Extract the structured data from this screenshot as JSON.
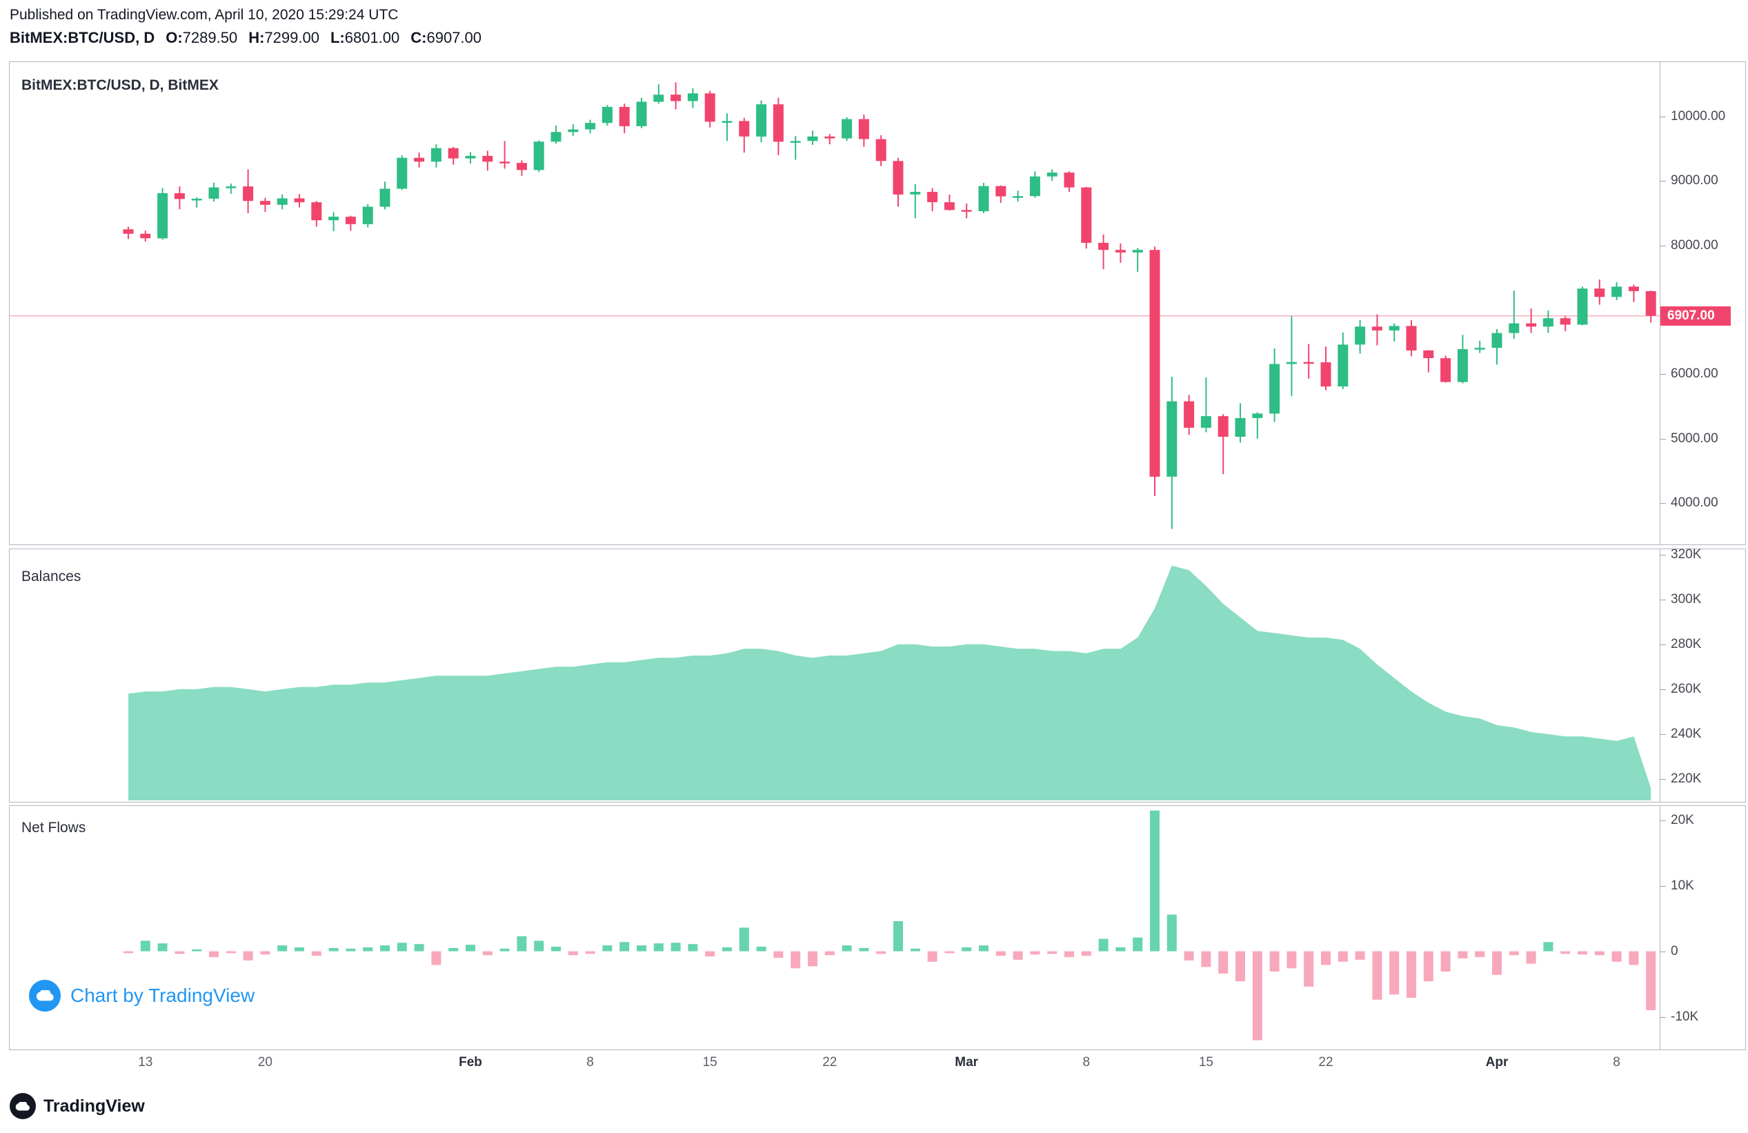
{
  "header": {
    "published_line": "Published on TradingView.com, April 10, 2020 15:29:24 UTC",
    "symbol": "BitMEX:BTC/USD, D",
    "o_label": "O:",
    "o_value": "7289.50",
    "h_label": "H:",
    "h_value": "7299.00",
    "l_label": "L:",
    "l_value": "6801.00",
    "c_label": "C:",
    "c_value": "6907.00"
  },
  "watermark": {
    "label": "Chart by TradingView"
  },
  "footer": {
    "brand": "TradingView"
  },
  "colors": {
    "up": "#2dbd85",
    "down": "#f1446d",
    "area_fill": "#8adcc3",
    "flow_up": "#66d4af",
    "flow_down": "#f8a8bb",
    "price_tag_bg": "#f1446d",
    "watermark_blue": "#2196f3",
    "border": "#b2b5be",
    "axis_text": "#44474f"
  },
  "x_axis": {
    "labels": [
      {
        "text": "13",
        "i": 1,
        "bold": false
      },
      {
        "text": "20",
        "i": 8,
        "bold": false
      },
      {
        "text": "Feb",
        "i": 20,
        "bold": true
      },
      {
        "text": "8",
        "i": 27,
        "bold": false
      },
      {
        "text": "15",
        "i": 34,
        "bold": false
      },
      {
        "text": "22",
        "i": 41,
        "bold": false
      },
      {
        "text": "Mar",
        "i": 49,
        "bold": true
      },
      {
        "text": "8",
        "i": 56,
        "bold": false
      },
      {
        "text": "15",
        "i": 63,
        "bold": false
      },
      {
        "text": "22",
        "i": 70,
        "bold": false
      },
      {
        "text": "Apr",
        "i": 80,
        "bold": true
      },
      {
        "text": "8",
        "i": 87,
        "bold": false
      }
    ]
  },
  "chart_data": [
    {
      "type": "candlestick",
      "title": "BitMEX:BTC/USD, D, BitMEX",
      "ylim": [
        3359,
        10845
      ],
      "yticks": [
        {
          "label": "10000.00",
          "v": 10000
        },
        {
          "label": "9000.00",
          "v": 9000
        },
        {
          "label": "8000.00",
          "v": 8000
        },
        {
          "label": "6000.00",
          "v": 6000
        },
        {
          "label": "5000.00",
          "v": 5000
        },
        {
          "label": "4000.00",
          "v": 4000
        }
      ],
      "last_price": 6907,
      "price_label": "6907.00",
      "ohlc": [
        [
          8250,
          8290,
          8100,
          8180
        ],
        [
          8180,
          8230,
          8060,
          8110
        ],
        [
          8110,
          8890,
          8090,
          8810
        ],
        [
          8810,
          8915,
          8560,
          8720
        ],
        [
          8720,
          8745,
          8585,
          8725
        ],
        [
          8725,
          8975,
          8680,
          8900
        ],
        [
          8900,
          8960,
          8800,
          8915
        ],
        [
          8915,
          9180,
          8500,
          8690
        ],
        [
          8690,
          8740,
          8520,
          8630
        ],
        [
          8630,
          8790,
          8560,
          8730
        ],
        [
          8730,
          8795,
          8590,
          8670
        ],
        [
          8670,
          8690,
          8290,
          8390
        ],
        [
          8390,
          8515,
          8220,
          8445
        ],
        [
          8445,
          8460,
          8230,
          8330
        ],
        [
          8330,
          8640,
          8280,
          8600
        ],
        [
          8600,
          8990,
          8560,
          8880
        ],
        [
          8880,
          9400,
          8860,
          9360
        ],
        [
          9360,
          9440,
          9210,
          9300
        ],
        [
          9300,
          9570,
          9210,
          9510
        ],
        [
          9510,
          9530,
          9250,
          9350
        ],
        [
          9350,
          9450,
          9270,
          9390
        ],
        [
          9390,
          9470,
          9160,
          9300
        ],
        [
          9300,
          9620,
          9190,
          9280
        ],
        [
          9280,
          9320,
          9080,
          9170
        ],
        [
          9170,
          9630,
          9140,
          9610
        ],
        [
          9610,
          9860,
          9580,
          9760
        ],
        [
          9760,
          9880,
          9700,
          9800
        ],
        [
          9800,
          9950,
          9740,
          9900
        ],
        [
          9900,
          10180,
          9860,
          10150
        ],
        [
          10150,
          10200,
          9740,
          9850
        ],
        [
          9850,
          10290,
          9820,
          10230
        ],
        [
          10230,
          10500,
          10200,
          10340
        ],
        [
          10340,
          10530,
          10110,
          10240
        ],
        [
          10240,
          10440,
          10130,
          10360
        ],
        [
          10360,
          10400,
          9830,
          9920
        ],
        [
          9920,
          10050,
          9620,
          9930
        ],
        [
          9930,
          9980,
          9440,
          9690
        ],
        [
          9690,
          10250,
          9600,
          10190
        ],
        [
          10190,
          10290,
          9400,
          9610
        ],
        [
          9610,
          9700,
          9330,
          9620
        ],
        [
          9620,
          9780,
          9560,
          9690
        ],
        [
          9690,
          9730,
          9570,
          9660
        ],
        [
          9660,
          9990,
          9620,
          9960
        ],
        [
          9960,
          10030,
          9530,
          9650
        ],
        [
          9650,
          9710,
          9230,
          9310
        ],
        [
          9310,
          9360,
          8600,
          8790
        ],
        [
          8790,
          8950,
          8420,
          8830
        ],
        [
          8830,
          8890,
          8530,
          8670
        ],
        [
          8670,
          8790,
          8540,
          8550
        ],
        [
          8550,
          8650,
          8420,
          8530
        ],
        [
          8530,
          8970,
          8500,
          8920
        ],
        [
          8920,
          8930,
          8660,
          8760
        ],
        [
          8760,
          8850,
          8680,
          8765
        ],
        [
          8765,
          9150,
          8740,
          9070
        ],
        [
          9070,
          9180,
          9000,
          9130
        ],
        [
          9130,
          9150,
          8830,
          8900
        ],
        [
          8900,
          8910,
          7950,
          8040
        ],
        [
          8040,
          8170,
          7630,
          7930
        ],
        [
          7930,
          8030,
          7730,
          7890
        ],
        [
          7890,
          7960,
          7590,
          7930
        ],
        [
          7930,
          7980,
          4110,
          4410
        ],
        [
          4410,
          5960,
          3600,
          5580
        ],
        [
          5580,
          5680,
          5060,
          5170
        ],
        [
          5170,
          5950,
          5100,
          5350
        ],
        [
          5350,
          5380,
          4450,
          5030
        ],
        [
          5030,
          5550,
          4940,
          5320
        ],
        [
          5320,
          5410,
          5000,
          5390
        ],
        [
          5390,
          6400,
          5260,
          6160
        ],
        [
          6160,
          6900,
          5660,
          6190
        ],
        [
          6190,
          6470,
          5930,
          6185
        ],
        [
          6185,
          6430,
          5750,
          5810
        ],
        [
          5810,
          6650,
          5770,
          6460
        ],
        [
          6460,
          6840,
          6320,
          6740
        ],
        [
          6740,
          6930,
          6450,
          6680
        ],
        [
          6680,
          6790,
          6510,
          6750
        ],
        [
          6750,
          6840,
          6280,
          6370
        ],
        [
          6370,
          6375,
          6030,
          6250
        ],
        [
          6250,
          6290,
          5870,
          5880
        ],
        [
          5880,
          6610,
          5860,
          6390
        ],
        [
          6390,
          6520,
          6330,
          6410
        ],
        [
          6410,
          6700,
          6150,
          6640
        ],
        [
          6640,
          7300,
          6550,
          6790
        ],
        [
          6790,
          7020,
          6640,
          6740
        ],
        [
          6740,
          6990,
          6640,
          6870
        ],
        [
          6870,
          6900,
          6670,
          6770
        ],
        [
          6770,
          7360,
          6760,
          7330
        ],
        [
          7330,
          7470,
          7080,
          7200
        ],
        [
          7200,
          7430,
          7150,
          7360
        ],
        [
          7360,
          7390,
          7120,
          7290
        ],
        [
          7289.5,
          7299,
          6801,
          6907
        ]
      ]
    },
    {
      "type": "area",
      "title": "Balances",
      "unit": "K",
      "ylim": [
        210.5,
        322.3
      ],
      "yticks": [
        {
          "label": "320K",
          "v": 320
        },
        {
          "label": "300K",
          "v": 300
        },
        {
          "label": "280K",
          "v": 280
        },
        {
          "label": "260K",
          "v": 260
        },
        {
          "label": "240K",
          "v": 240
        },
        {
          "label": "220K",
          "v": 220
        }
      ],
      "values": [
        258,
        259,
        259,
        260,
        260,
        261,
        261,
        260,
        259,
        260,
        261,
        261,
        262,
        262,
        263,
        263,
        264,
        265,
        266,
        266,
        266,
        266,
        267,
        268,
        269,
        270,
        270,
        271,
        272,
        272,
        273,
        274,
        274,
        275,
        275,
        276,
        278,
        278,
        277,
        275,
        274,
        275,
        275,
        276,
        277,
        280,
        280,
        279,
        279,
        280,
        280,
        279,
        278,
        278,
        277,
        277,
        276,
        278,
        278,
        283,
        296,
        315,
        313,
        306,
        298,
        292,
        286,
        285,
        284,
        283,
        283,
        282,
        278,
        271,
        265,
        259,
        254,
        250,
        248,
        247,
        244,
        243,
        241,
        240,
        239,
        239,
        238,
        237,
        239,
        216
      ]
    },
    {
      "type": "bar",
      "title": "Net Flows",
      "unit": "K",
      "ylim": [
        -14.8,
        22.2
      ],
      "yticks": [
        {
          "label": "20K",
          "v": 20
        },
        {
          "label": "10K",
          "v": 10
        },
        {
          "label": "0",
          "v": 0
        },
        {
          "label": "-10K",
          "v": -10
        }
      ],
      "values": [
        -0.3,
        1.6,
        1.2,
        -0.4,
        0.3,
        -0.9,
        -0.3,
        -1.4,
        -0.5,
        0.9,
        0.6,
        -0.7,
        0.5,
        0.4,
        0.6,
        0.9,
        1.3,
        1.1,
        -2.1,
        0.5,
        1.0,
        -0.6,
        0.4,
        2.3,
        1.6,
        0.7,
        -0.6,
        -0.4,
        0.9,
        1.4,
        0.9,
        1.2,
        1.3,
        1.1,
        -0.8,
        0.6,
        3.6,
        0.7,
        -1.0,
        -2.6,
        -2.3,
        -0.6,
        0.9,
        0.5,
        -0.4,
        4.6,
        0.4,
        -1.6,
        -0.3,
        0.6,
        0.9,
        -0.7,
        -1.3,
        -0.5,
        -0.4,
        -0.9,
        -0.7,
        1.9,
        0.6,
        2.1,
        21.5,
        5.6,
        -1.4,
        -2.4,
        -3.4,
        -4.6,
        -13.6,
        -3.1,
        -2.6,
        -5.4,
        -2.1,
        -1.6,
        -1.3,
        -7.4,
        -6.6,
        -7.1,
        -4.6,
        -3.1,
        -1.1,
        -0.9,
        -3.6,
        -0.6,
        -1.9,
        1.4,
        -0.4,
        -0.5,
        -0.6,
        -1.6,
        -2.1,
        -9.0
      ]
    }
  ]
}
